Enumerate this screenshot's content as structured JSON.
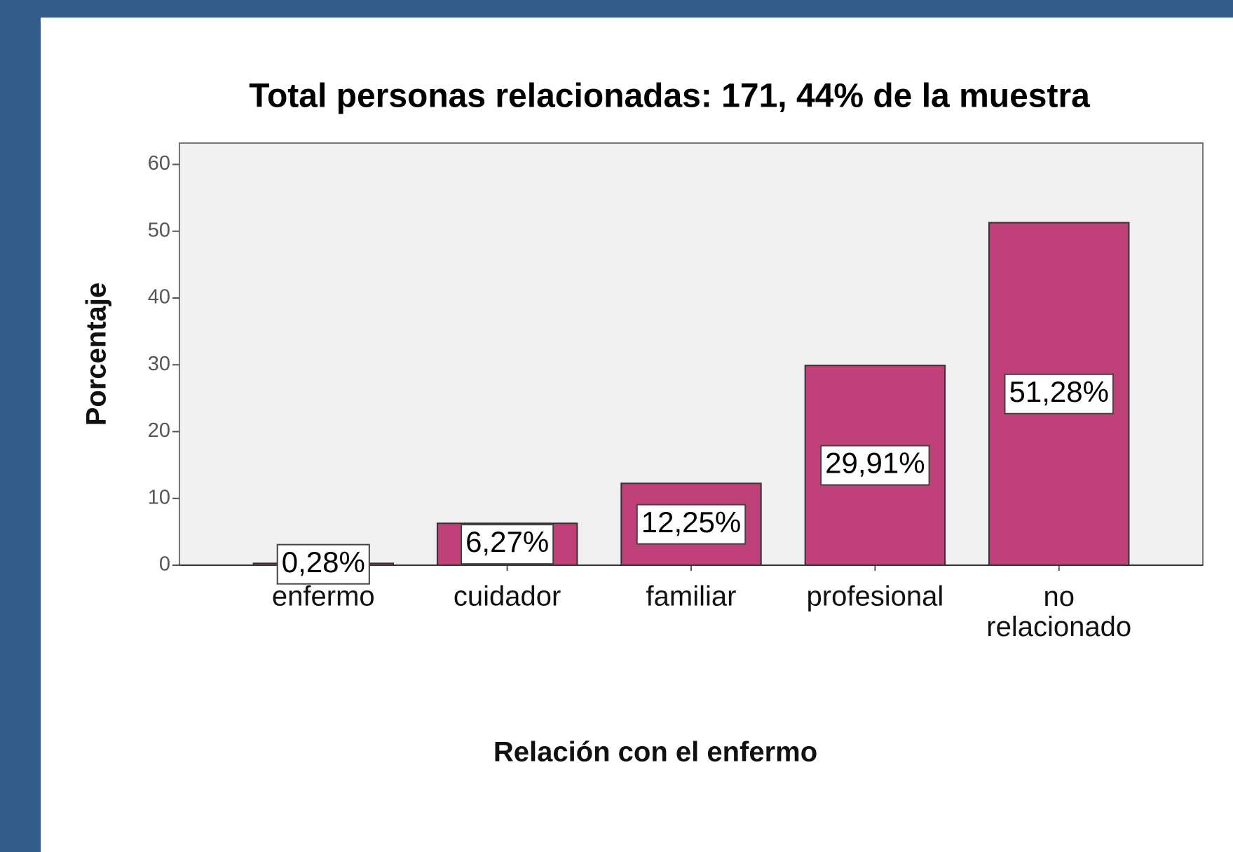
{
  "chart_data": {
    "type": "bar",
    "title": "Total personas relacionadas: 171, 44% de la muestra",
    "x_label": "Relación con el enfermo",
    "y_label": "Porcentaje",
    "categories": [
      "enfermo",
      "cuidador",
      "familiar",
      "profesional",
      "no relacionado"
    ],
    "values": [
      0.28,
      6.27,
      12.25,
      29.91,
      51.28
    ],
    "value_labels": [
      "0,28%",
      "6,27%",
      "12,25%",
      "29,91%",
      "51,28%"
    ],
    "color": "#c0407a",
    "ylim": [
      0,
      63.2
    ],
    "yticks": [
      0,
      10,
      20,
      30,
      40,
      50,
      60
    ],
    "grid": false
  }
}
